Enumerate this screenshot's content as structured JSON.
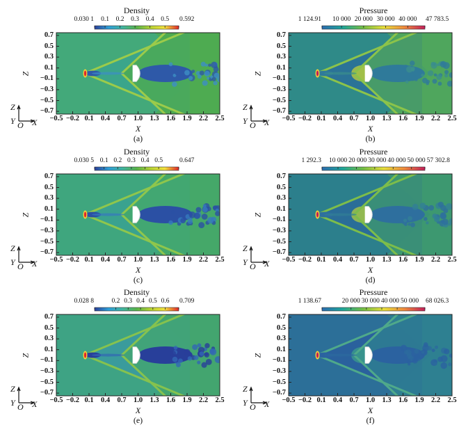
{
  "chart_data": [
    {
      "type": "heatmap",
      "caption": "(a)",
      "quantity": "Density",
      "colorbar": {
        "title": "Density",
        "min": 0.0301,
        "max": 0.592,
        "labels": [
          "0.030 1",
          "0.1",
          "0.2",
          "0.3",
          "0.4",
          "0.5",
          "0.592"
        ],
        "values": [
          0.0301,
          0.1,
          0.2,
          0.3,
          0.4,
          0.5,
          0.592
        ],
        "colors": [
          "#2b3f99",
          "#2e9fd8",
          "#41b5a0",
          "#58b44a",
          "#b7d334",
          "#f4e23c",
          "#e0262a"
        ]
      },
      "xlabel": "X",
      "ylabel": "Z",
      "xlim": [
        -0.5,
        2.5
      ],
      "ylim": [
        -0.75,
        0.75
      ],
      "xticks": [
        "−0.5",
        "−0.2",
        "0.1",
        "0.4",
        "0.7",
        "1.0",
        "1.3",
        "1.6",
        "1.9",
        "2.2",
        "2.5"
      ],
      "yticks": [
        "0.7",
        "0.5",
        "0.3",
        "0.1",
        "−0.1",
        "−0.3",
        "−0.5",
        "−0.7"
      ],
      "colors": {
        "bg": "#43a97a",
        "outer": "#4fab4e",
        "between": "#3aa58e",
        "shock": "#9ccb4a",
        "wake": "#2e59a8",
        "wake2": "#3d8ec4",
        "nose": "#e0262a"
      }
    },
    {
      "type": "heatmap",
      "caption": "(b)",
      "quantity": "Pressure",
      "colorbar": {
        "title": "Pressure",
        "min": 1124.91,
        "max": 47783.5,
        "labels": [
          "1 124.91",
          "10 000",
          "20 000",
          "30 000",
          "40 000",
          "47 783.5"
        ],
        "values": [
          1124.91,
          10000,
          20000,
          30000,
          40000,
          47783.5
        ],
        "colors": [
          "#2c6cb0",
          "#1fa69a",
          "#74bf44",
          "#e8df3a",
          "#f08a3c",
          "#c21e5a"
        ]
      },
      "xlabel": "X",
      "ylabel": "Z",
      "xlim": [
        -0.5,
        2.5
      ],
      "ylim": [
        -0.75,
        0.75
      ],
      "xticks": [
        "−0.5",
        "−0.2",
        "0.1",
        "0.4",
        "0.7",
        "1.0",
        "1.3",
        "1.6",
        "1.9",
        "2.2",
        "2.5"
      ],
      "yticks": [
        "0.7",
        "0.5",
        "0.3",
        "0.1",
        "−0.1",
        "−0.3",
        "−0.5",
        "−0.7"
      ],
      "colors": {
        "bg": "#2f8a88",
        "outer": "#52a85a",
        "between": "#2a6f9a",
        "shock": "#8cc34a",
        "wake": "#2f7a9a",
        "wake2": "#3b8e8c",
        "nose": "#c21e5a",
        "front": "#b8c840"
      }
    },
    {
      "type": "heatmap",
      "caption": "(c)",
      "quantity": "Density",
      "colorbar": {
        "title": "Density",
        "min": 0.0305,
        "max": 0.647,
        "labels": [
          "0.030 5",
          "0.1",
          "0.2",
          "0.3",
          "0.4",
          "0.5",
          "0.647"
        ],
        "values": [
          0.0305,
          0.1,
          0.2,
          0.3,
          0.4,
          0.5,
          0.647
        ],
        "colors": [
          "#2b3f99",
          "#2e9fd8",
          "#41b5a0",
          "#58b44a",
          "#b7d334",
          "#f4e23c",
          "#e0262a"
        ]
      },
      "xlabel": "X",
      "ylabel": "Z",
      "xlim": [
        -0.5,
        2.5
      ],
      "ylim": [
        -0.75,
        0.75
      ],
      "xticks": [
        "−0.5",
        "−0.2",
        "0.1",
        "0.4",
        "0.7",
        "1.0",
        "1.3",
        "1.6",
        "1.9",
        "2.2",
        "2.5"
      ],
      "yticks": [
        "0.7",
        "0.5",
        "0.3",
        "0.1",
        "−0.1",
        "−0.3",
        "−0.5",
        "−0.7"
      ],
      "colors": {
        "bg": "#3fa67e",
        "outer": "#46a868",
        "between": "#3aa192",
        "shock": "#8fc64c",
        "wake": "#2b50a4",
        "wake2": "#3679bd",
        "nose": "#e0262a"
      }
    },
    {
      "type": "heatmap",
      "caption": "(d)",
      "quantity": "Pressure",
      "colorbar": {
        "title": "Pressure",
        "min": 1292.3,
        "max": 57302.8,
        "labels": [
          "1 292.3",
          "10 000",
          "20 000",
          "30 000",
          "40 000",
          "50 000",
          "57 302.8"
        ],
        "values": [
          1292.3,
          10000,
          20000,
          30000,
          40000,
          50000,
          57302.8
        ],
        "colors": [
          "#2c6cb0",
          "#1fa69a",
          "#74bf44",
          "#e8df3a",
          "#f08a3c",
          "#c21e5a"
        ]
      },
      "xlabel": "X",
      "ylabel": "Z",
      "xlim": [
        -0.5,
        2.5
      ],
      "ylim": [
        -0.75,
        0.75
      ],
      "xticks": [
        "−0.5",
        "−0.2",
        "0.1",
        "0.4",
        "0.7",
        "1.0",
        "1.3",
        "1.6",
        "1.9",
        "2.2",
        "2.5"
      ],
      "yticks": [
        "0.7",
        "0.5",
        "0.3",
        "0.1",
        "−0.1",
        "−0.3",
        "−0.5",
        "−0.7"
      ],
      "colors": {
        "bg": "#2c7f8c",
        "outer": "#3f9a6e",
        "between": "#2a6a9a",
        "shock": "#7dbd4a",
        "wake": "#2e6f9e",
        "wake2": "#327f96",
        "nose": "#c21e5a",
        "front": "#a9c447"
      }
    },
    {
      "type": "heatmap",
      "caption": "(e)",
      "quantity": "Density",
      "colorbar": {
        "title": "Density",
        "min": 0.0288,
        "max": 0.709,
        "labels": [
          "0.028 8",
          "0.2",
          "0.3",
          "0.4",
          "0.5",
          "0.6",
          "0.709"
        ],
        "values": [
          0.0288,
          0.2,
          0.3,
          0.4,
          0.5,
          0.6,
          0.709
        ],
        "colors": [
          "#2b3f99",
          "#2e9fd8",
          "#41b5a0",
          "#58b44a",
          "#b7d334",
          "#f4e23c",
          "#e0262a"
        ]
      },
      "xlabel": "X",
      "ylabel": "Z",
      "xlim": [
        -0.5,
        2.5
      ],
      "ylim": [
        -0.75,
        0.75
      ],
      "xticks": [
        "−0.5",
        "−0.2",
        "0.1",
        "0.4",
        "0.7",
        "1.0",
        "1.3",
        "1.6",
        "1.9",
        "2.2",
        "2.5"
      ],
      "yticks": [
        "0.7",
        "0.5",
        "0.3",
        "0.1",
        "−0.1",
        "−0.3",
        "−0.5",
        "−0.7"
      ],
      "colors": {
        "bg": "#3ea384",
        "outer": "#44a56e",
        "between": "#3a9aa0",
        "shock": "#86c24e",
        "wake": "#283f9a",
        "wake2": "#3266b5",
        "nose": "#e0262a"
      }
    },
    {
      "type": "heatmap",
      "caption": "(f)",
      "quantity": "Pressure",
      "colorbar": {
        "title": "Pressure",
        "min": 1138.67,
        "max": 68026.3,
        "labels": [
          "1 138.67",
          "20 000",
          "30 000",
          "40 000",
          "50 000",
          "68 026.3"
        ],
        "values": [
          1138.67,
          20000,
          30000,
          40000,
          50000,
          68026.3
        ],
        "colors": [
          "#2c6cb0",
          "#1fa69a",
          "#74bf44",
          "#e8df3a",
          "#f08a3c",
          "#c21e5a"
        ]
      },
      "xlabel": "X",
      "ylabel": "Z",
      "xlim": [
        -0.5,
        2.5
      ],
      "ylim": [
        -0.75,
        0.75
      ],
      "xticks": [
        "−0.5",
        "−0.2",
        "0.1",
        "0.4",
        "0.7",
        "1.0",
        "1.3",
        "1.6",
        "1.9",
        "2.2",
        "2.5"
      ],
      "yticks": [
        "0.7",
        "0.5",
        "0.3",
        "0.1",
        "−0.1",
        "−0.3",
        "−0.5",
        "−0.7"
      ],
      "colors": {
        "bg": "#2c6f98",
        "outer": "#2f8290",
        "between": "#2a5f9e",
        "shock": "#4fa98a",
        "wake": "#2b62a0",
        "wake2": "#2c6a9e",
        "nose": "#c21e5a",
        "front": "#3b9a8c"
      }
    }
  ],
  "triad": {
    "z": "Z",
    "y": "Y",
    "o": "O",
    "x": "X"
  }
}
